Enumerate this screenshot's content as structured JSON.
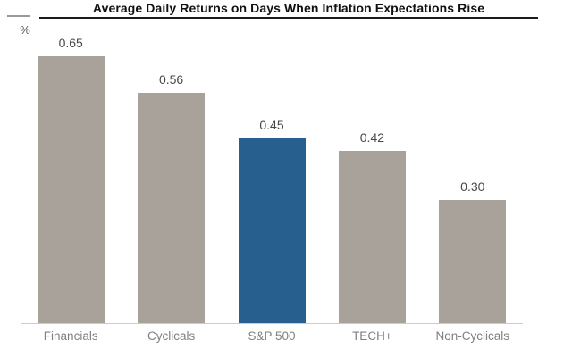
{
  "header": {
    "title": "Average Daily Returns on Days When Inflation Expectations Rise",
    "y_axis_unit": "%"
  },
  "chart_data": {
    "type": "bar",
    "title": "Average Daily Returns on Days When Inflation Expectations Rise",
    "categories": [
      "Financials",
      "Cyclicals",
      "S&P 500",
      "TECH+",
      "Non-Cyclicals"
    ],
    "values": [
      0.65,
      0.56,
      0.45,
      0.42,
      0.3
    ],
    "value_labels": [
      "0.65",
      "0.56",
      "0.45",
      "0.42",
      "0.30"
    ],
    "xlabel": "",
    "ylabel": "%",
    "ylim": [
      0,
      0.7
    ],
    "grid": false,
    "legend": "none",
    "highlighted_category": "S&P 500",
    "colors": {
      "bar_default": "#A9A29B",
      "bar_highlight": "#27608E",
      "axis_line": "#CCCCCC",
      "title_rule": "#1A1A1A",
      "left_rule": "#999999",
      "value_label": "#474747",
      "category_label": "#7F7F7F",
      "unit_label": "#555555",
      "title_text": "#111111"
    }
  }
}
